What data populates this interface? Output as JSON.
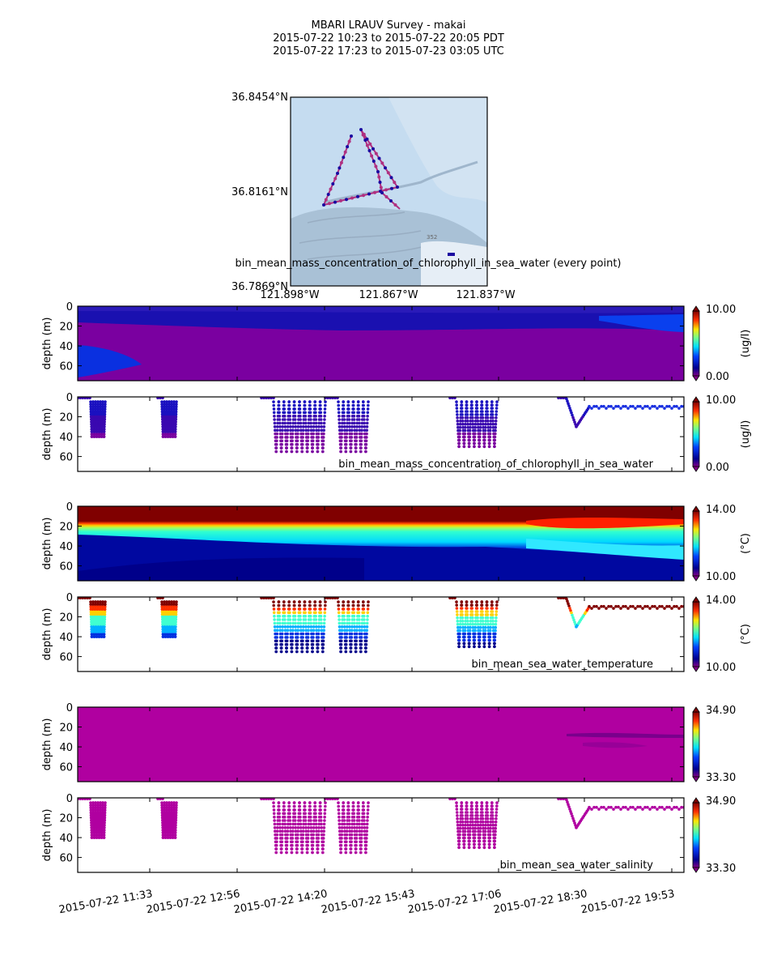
{
  "header": {
    "title": "MBARI LRAUV Survey - makai",
    "line_pdt": "2015-07-22 10:23  to  2015-07-22 20:05 PDT",
    "line_utc": "2015-07-22 17:23  to  2015-07-23 03:05 UTC"
  },
  "colors": {
    "map_water": "#c5dcf0",
    "map_shelf": "#a9c1d6",
    "track_line": "#b03080",
    "track_points": "#1a0aa0",
    "axis": "#000000"
  },
  "map": {
    "lat_ticks": [
      "36.8454°N",
      "36.8161°N",
      "36.7869°N"
    ],
    "lon_ticks": [
      "121.898°W",
      "121.867°W",
      "121.837°W"
    ],
    "contour_label": "352",
    "caption": "bin_mean_mass_concentration_of_chlorophyll_in_sea_water (every point)"
  },
  "time_ticks": [
    "2015-07-22 11:33",
    "2015-07-22 12:56",
    "2015-07-22 14:20",
    "2015-07-22 15:43",
    "2015-07-22 17:06",
    "2015-07-22 18:30",
    "2015-07-22 19:53"
  ],
  "chart_data": [
    {
      "type": "heatmap",
      "variable": "bin_mean_mass_concentration_of_chlorophyll_in_sea_water",
      "ylabel": "depth (m)",
      "yticks": [
        "0",
        "20",
        "40",
        "60"
      ],
      "ylim": [
        75,
        0
      ],
      "colorbar": {
        "min": "0.00",
        "max": "10.00",
        "units": "(ug/l)"
      },
      "caption": ""
    },
    {
      "type": "scatter",
      "variable": "bin_mean_mass_concentration_of_chlorophyll_in_sea_water",
      "ylabel": "depth (m)",
      "yticks": [
        "0",
        "20",
        "40",
        "60"
      ],
      "ylim": [
        75,
        0
      ],
      "colorbar": {
        "min": "0.00",
        "max": "10.00",
        "units": "(ug/l)"
      },
      "caption": "bin_mean_mass_concentration_of_chlorophyll_in_sea_water"
    },
    {
      "type": "heatmap",
      "variable": "bin_mean_sea_water_temperature",
      "ylabel": "depth (m)",
      "yticks": [
        "0",
        "20",
        "40",
        "60"
      ],
      "ylim": [
        75,
        0
      ],
      "colorbar": {
        "min": "10.00",
        "max": "14.00",
        "units": "(°C)"
      },
      "caption": ""
    },
    {
      "type": "scatter",
      "variable": "bin_mean_sea_water_temperature",
      "ylabel": "depth (m)",
      "yticks": [
        "0",
        "20",
        "40",
        "60"
      ],
      "ylim": [
        75,
        0
      ],
      "colorbar": {
        "min": "10.00",
        "max": "14.00",
        "units": "(°C)"
      },
      "caption": "bin_mean_sea_water_temperature"
    },
    {
      "type": "heatmap",
      "variable": "bin_mean_sea_water_salinity",
      "ylabel": "depth (m)",
      "yticks": [
        "0",
        "20",
        "40",
        "60"
      ],
      "ylim": [
        75,
        0
      ],
      "colorbar": {
        "min": "33.30",
        "max": "34.90",
        "units": ""
      },
      "caption": ""
    },
    {
      "type": "scatter",
      "variable": "bin_mean_sea_water_salinity",
      "ylabel": "depth (m)",
      "yticks": [
        "0",
        "20",
        "40",
        "60"
      ],
      "ylim": [
        75,
        0
      ],
      "colorbar": {
        "min": "33.30",
        "max": "34.90",
        "units": ""
      },
      "caption": "bin_mean_sea_water_salinity"
    }
  ]
}
